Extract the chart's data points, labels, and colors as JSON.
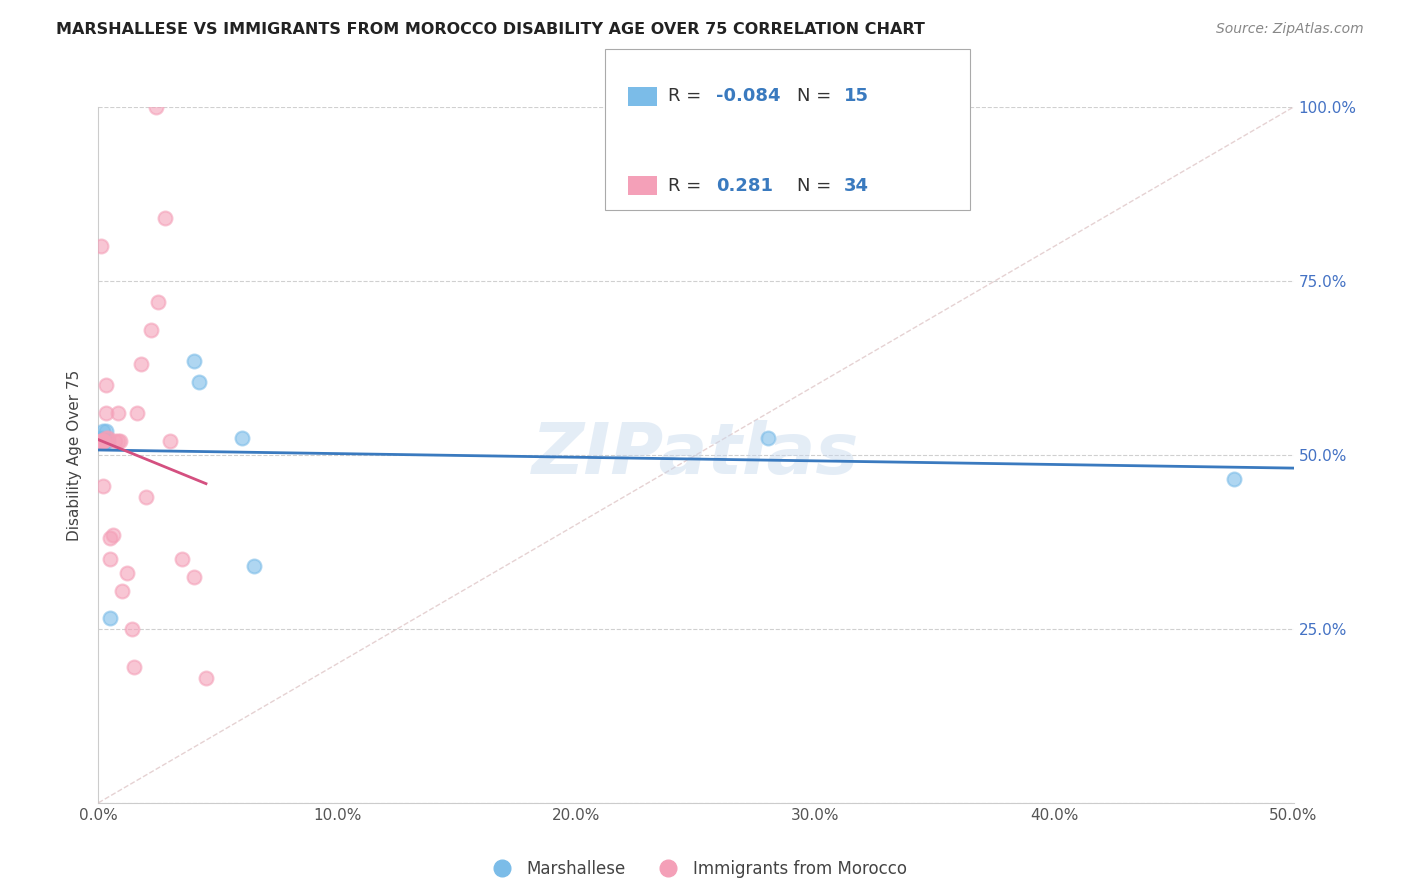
{
  "title": "MARSHALLESE VS IMMIGRANTS FROM MOROCCO DISABILITY AGE OVER 75 CORRELATION CHART",
  "source": "Source: ZipAtlas.com",
  "ylabel": "Disability Age Over 75",
  "xlim": [
    0.0,
    0.5
  ],
  "ylim": [
    0.0,
    1.0
  ],
  "xticks": [
    0.0,
    0.1,
    0.2,
    0.3,
    0.4,
    0.5
  ],
  "xticklabels": [
    "0.0%",
    "10.0%",
    "20.0%",
    "30.0%",
    "40.0%",
    "50.0%"
  ],
  "yticks": [
    0.0,
    0.25,
    0.5,
    0.75,
    1.0
  ],
  "yticklabels_right": [
    "",
    "25.0%",
    "50.0%",
    "75.0%",
    "100.0%"
  ],
  "marshallese_color": "#7bbce8",
  "morocco_color": "#f4a0b8",
  "reg_line_marshallese_color": "#3a7abf",
  "reg_line_morocco_color": "#d45080",
  "diag_line_color": "#dbbfc0",
  "legend_R_marshallese": "-0.084",
  "legend_N_marshallese": "15",
  "legend_R_morocco": "0.281",
  "legend_N_morocco": "34",
  "legend_value_color": "#3a7abf",
  "marshallese_x": [
    0.001,
    0.001,
    0.002,
    0.002,
    0.003,
    0.003,
    0.003,
    0.004,
    0.005,
    0.04,
    0.042,
    0.06,
    0.065,
    0.28,
    0.475
  ],
  "marshallese_y": [
    0.525,
    0.52,
    0.535,
    0.52,
    0.535,
    0.52,
    0.52,
    0.52,
    0.265,
    0.635,
    0.605,
    0.525,
    0.34,
    0.525,
    0.465
  ],
  "morocco_x": [
    0.001,
    0.001,
    0.001,
    0.001,
    0.002,
    0.002,
    0.002,
    0.002,
    0.003,
    0.003,
    0.003,
    0.004,
    0.005,
    0.005,
    0.006,
    0.007,
    0.008,
    0.008,
    0.009,
    0.01,
    0.012,
    0.014,
    0.015,
    0.016,
    0.018,
    0.02,
    0.022,
    0.024,
    0.025,
    0.028,
    0.03,
    0.035,
    0.04,
    0.045
  ],
  "morocco_y": [
    0.52,
    0.52,
    0.52,
    0.8,
    0.52,
    0.52,
    0.52,
    0.455,
    0.56,
    0.6,
    0.525,
    0.525,
    0.35,
    0.38,
    0.385,
    0.52,
    0.52,
    0.56,
    0.52,
    0.305,
    0.33,
    0.25,
    0.195,
    0.56,
    0.63,
    0.44,
    0.68,
    1.0,
    0.72,
    0.84,
    0.52,
    0.35,
    0.325,
    0.18
  ]
}
